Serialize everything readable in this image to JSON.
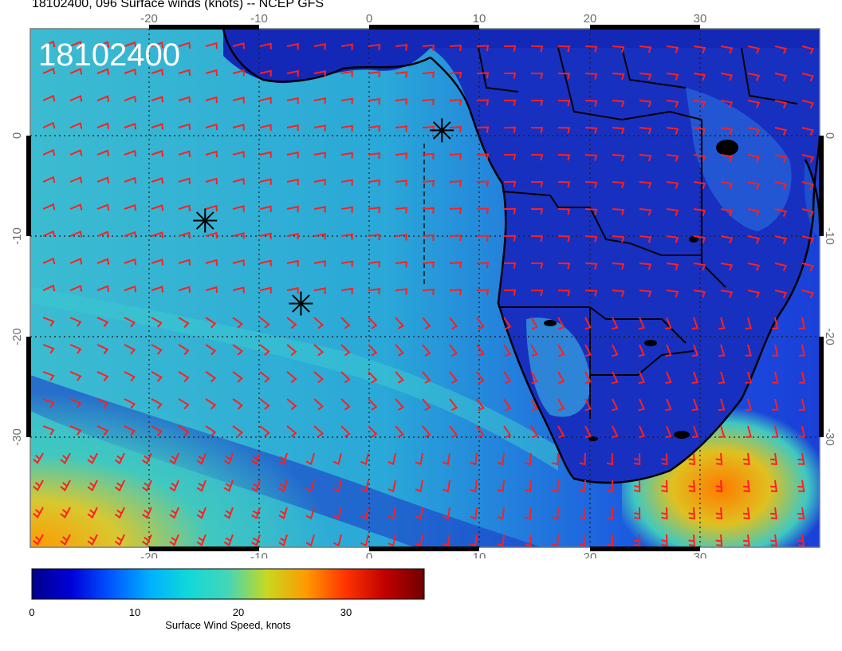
{
  "header": {
    "title": "18102400, 096 Surface winds (knots) -- NCEP GFS",
    "stamp": "18102400"
  },
  "map": {
    "lon_range": [
      -30,
      40
    ],
    "lat_range": [
      -40,
      10
    ],
    "lon_ticks": [
      "-20",
      "-10",
      "0",
      "10",
      "20",
      "30"
    ],
    "lat_ticks": [
      "0",
      "-10",
      "-20",
      "-30"
    ],
    "gridlines": true,
    "wind_barb_color": "#ff1f1f",
    "markers": [
      {
        "name": "star-marker",
        "lon": 6.5,
        "lat": 0.2
      },
      {
        "name": "star-marker",
        "lon": -14.5,
        "lat": -8.5
      },
      {
        "name": "star-marker",
        "lon": -6,
        "lat": -16.5
      }
    ]
  },
  "colorbar": {
    "label": "Surface Wind Speed, knots",
    "ticks": [
      "0",
      "10",
      "20",
      "30"
    ],
    "range": [
      0,
      38
    ],
    "colors": [
      "#00008b",
      "#0000d8",
      "#0055ff",
      "#00b0ff",
      "#11d8d8",
      "#45d6b6",
      "#c8d820",
      "#ff9900",
      "#ff3300",
      "#c00000",
      "#700000"
    ]
  }
}
